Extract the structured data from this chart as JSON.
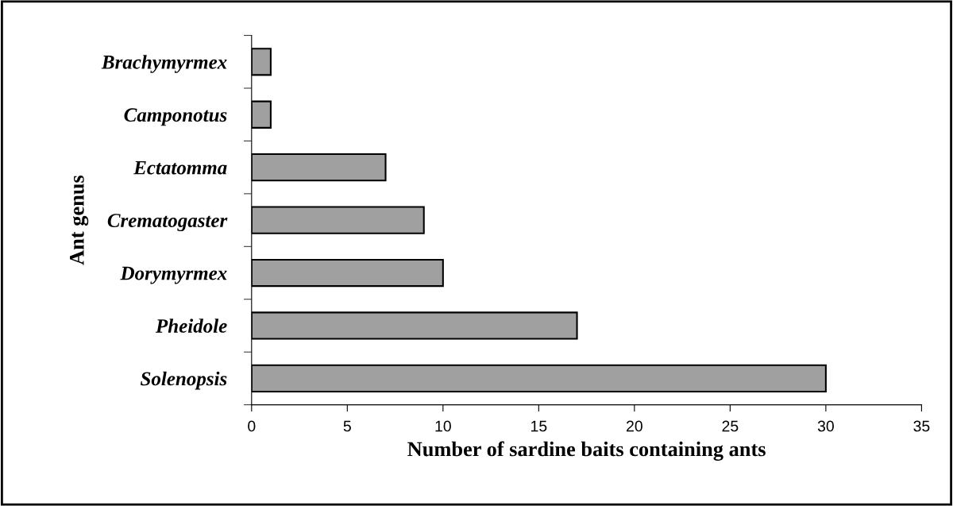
{
  "chart_data": {
    "type": "bar",
    "orientation": "horizontal",
    "categories": [
      "Brachymyrmex",
      "Camponotus",
      "Ectatomma",
      "Crematogaster",
      "Dorymyrmex",
      "Pheidole",
      "Solenopsis"
    ],
    "values": [
      1,
      1,
      7,
      9,
      10,
      17,
      30
    ],
    "color": "#a0a0a0",
    "xlabel": "Number of sardine baits containing ants",
    "ylabel": "Ant genus",
    "xlim": [
      0,
      35
    ],
    "xticks": [
      0,
      5,
      10,
      15,
      20,
      25,
      30,
      35
    ],
    "grid": false,
    "legend": false
  }
}
